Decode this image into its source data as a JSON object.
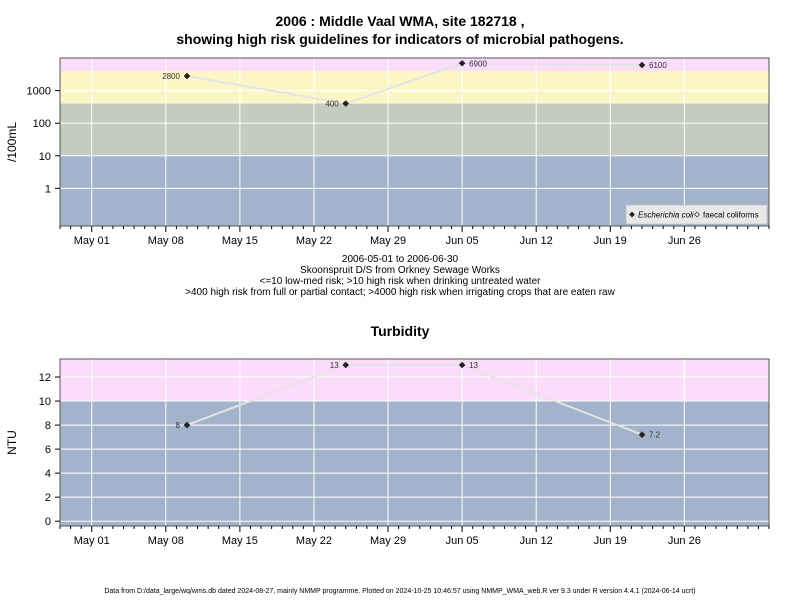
{
  "title_line1": "2006 : Middle Vaal WMA, site 182718 ,",
  "title_line2": "showing high risk guidelines for indicators of microbial pathogens.",
  "caption": {
    "line1": "2006-05-01 to 2006-06-30",
    "line2": "Skoonspruit D/S from Orkney Sewage Works",
    "line3": "<=10 low-med risk; >10 high risk when drinking untreated water",
    "line4": ">400 high risk from full or partial contact; >4000 high risk when irrigating crops that are eaten raw"
  },
  "footer": "Data from D:/data_large/wq/wms.db dated 2024-08-27, mainly NMMP programme. Plotted on 2024-10-25 10:46:57 using NMMP_WMA_web.R ver 9.3 under R version 4.4.1 (2024-06-14 ucrt)",
  "colors": {
    "band_low": "#a3b3cb",
    "band_mid": "#c4cbbf",
    "band_high": "#fcf6c7",
    "band_top": "#fbdcfb",
    "line": "#e4e4e4",
    "grid": "#ffffff",
    "marker": "#222222"
  },
  "chart_data": [
    {
      "type": "line",
      "title": "",
      "ylabel": "/100mL",
      "xlabel": "",
      "y_scale": "log10",
      "x_range": [
        "2006-04-28",
        "2006-07-04"
      ],
      "y_range": [
        0.07,
        10000
      ],
      "x_ticks": [
        "2006-05-01",
        "2006-05-08",
        "2006-05-15",
        "2006-05-22",
        "2006-05-29",
        "2006-06-05",
        "2006-06-12",
        "2006-06-19",
        "2006-06-26"
      ],
      "x_tick_labels": [
        "May 01",
        "May 08",
        "May 15",
        "May 22",
        "May 29",
        "Jun 05",
        "Jun 12",
        "Jun 19",
        "Jun 26"
      ],
      "y_ticks": [
        1,
        10,
        100,
        1000
      ],
      "y_tick_labels": [
        "1",
        "10",
        "100",
        "1000"
      ],
      "bands": [
        {
          "from": 0.07,
          "to": 10,
          "color": "#a3b3cb"
        },
        {
          "from": 10,
          "to": 400,
          "color": "#c4cbbf"
        },
        {
          "from": 400,
          "to": 4000,
          "color": "#fcf6c7"
        },
        {
          "from": 4000,
          "to": 10000,
          "color": "#fbdcfb"
        }
      ],
      "grid": true,
      "legend_position": "bottom-right",
      "legend": [
        {
          "label": "Escherichia coli",
          "marker": "filled-diamond",
          "italic": true
        },
        {
          "label": "faecal coliforms",
          "marker": "open-diamond",
          "italic": false
        }
      ],
      "series": [
        {
          "name": "Escherichia coli",
          "x": [
            "2006-05-10",
            "2006-05-25",
            "2006-06-05",
            "2006-06-22"
          ],
          "y": [
            2800,
            400,
            6900,
            6100
          ],
          "labels": [
            "2800",
            "400",
            "6900",
            "6100"
          ],
          "label_side": [
            "left",
            "left",
            "right",
            "right"
          ]
        }
      ]
    },
    {
      "type": "line",
      "title": "Turbidity",
      "ylabel": "NTU",
      "xlabel": "",
      "y_scale": "linear",
      "x_range": [
        "2006-04-28",
        "2006-07-04"
      ],
      "y_range": [
        -0.4,
        13.5
      ],
      "x_ticks": [
        "2006-05-01",
        "2006-05-08",
        "2006-05-15",
        "2006-05-22",
        "2006-05-29",
        "2006-06-05",
        "2006-06-12",
        "2006-06-19",
        "2006-06-26"
      ],
      "x_tick_labels": [
        "May 01",
        "May 08",
        "May 15",
        "May 22",
        "May 29",
        "Jun 05",
        "Jun 12",
        "Jun 19",
        "Jun 26"
      ],
      "y_ticks": [
        0,
        2,
        4,
        6,
        8,
        10,
        12
      ],
      "y_tick_labels": [
        "0",
        "2",
        "4",
        "6",
        "8",
        "10",
        "12"
      ],
      "bands": [
        {
          "from": -0.4,
          "to": 10,
          "color": "#a3b3cb"
        },
        {
          "from": 10,
          "to": 13.5,
          "color": "#fbdcfb"
        }
      ],
      "grid": true,
      "series": [
        {
          "name": "",
          "x": [
            "2006-05-10",
            "2006-05-25",
            "2006-06-05",
            "2006-06-22"
          ],
          "y": [
            8,
            13,
            13,
            7.2
          ],
          "labels": [
            "8",
            "13",
            "13",
            "7.2"
          ],
          "label_side": [
            "left",
            "left",
            "right",
            "right"
          ]
        }
      ]
    }
  ]
}
